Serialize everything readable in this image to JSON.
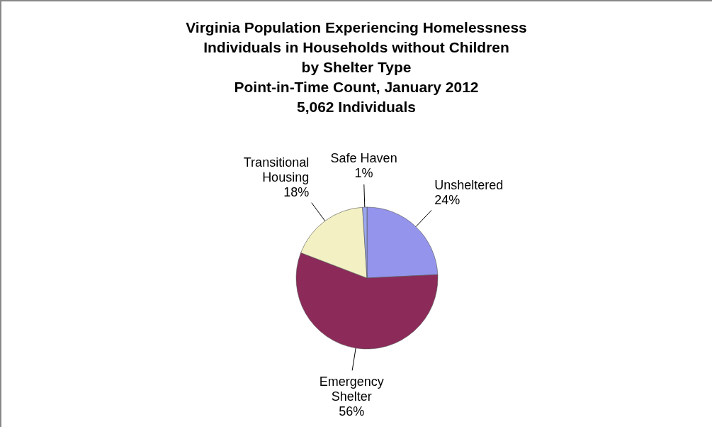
{
  "chart_data": {
    "type": "pie",
    "title": "Virginia Population Experiencing Homelessness\nIndividuals in Households without Children\nby Shelter Type\nPoint-in-Time Count, January 2012\n5,062 Individuals",
    "categories": [
      "Unsheltered",
      "Emergency Shelter",
      "Transitional Housing",
      "Safe Haven"
    ],
    "values": [
      24,
      56,
      18,
      1
    ],
    "value_labels": [
      "24%",
      "56%",
      "18%",
      "1%"
    ],
    "colors": [
      "#9494ec",
      "#8c2b5a",
      "#f3f1c4",
      "#9aa6ee"
    ]
  }
}
